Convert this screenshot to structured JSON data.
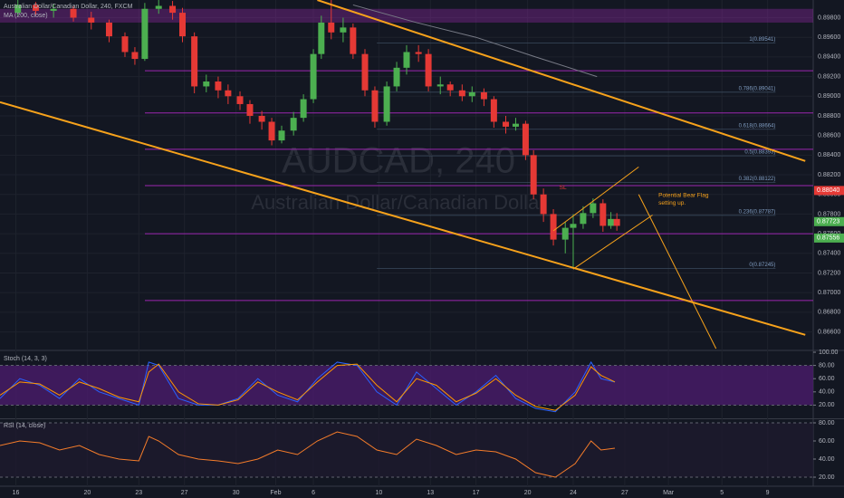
{
  "chart_data": [
    {
      "type": "candlestick",
      "title": "Australian Dollar/Canadian Dollar, 240, FXCM",
      "indicator": "MA (200, close)",
      "watermark": "AUDCAD, 240",
      "watermark_subtitle": "Australian Dollar/Canadian Dollar",
      "up_color": "#4caf50",
      "down_color": "#e53935",
      "xlim": [
        0,
        41
      ],
      "ylim": [
        0.8643,
        0.8998
      ],
      "x": [
        0.9,
        1.8,
        2.7,
        3.7,
        4.6,
        5.5,
        6.3,
        6.8,
        7.3,
        8.0,
        8.7,
        9.2,
        9.8,
        10.4,
        11.0,
        11.5,
        12.1,
        12.6,
        13.2,
        13.7,
        14.2,
        14.8,
        15.3,
        15.8,
        16.2,
        16.7,
        17.3,
        17.8,
        18.4,
        18.9,
        19.5,
        20.0,
        20.5,
        21.1,
        21.6,
        22.2,
        22.7,
        23.3,
        23.8,
        24.4,
        24.9,
        25.5,
        26.0,
        26.5,
        26.9,
        27.4,
        27.9,
        28.5,
        28.9,
        29.4,
        29.9,
        30.4,
        30.8,
        31.1
      ],
      "open": [
        0.8985,
        0.8993,
        0.8987,
        0.8989,
        0.898,
        0.8975,
        0.8961,
        0.8945,
        0.8938,
        0.8989,
        0.8992,
        0.8985,
        0.8961,
        0.891,
        0.8915,
        0.8906,
        0.89,
        0.8892,
        0.888,
        0.8874,
        0.8855,
        0.8865,
        0.8878,
        0.8897,
        0.8943,
        0.8975,
        0.8965,
        0.897,
        0.8943,
        0.8906,
        0.8874,
        0.891,
        0.8929,
        0.8945,
        0.8943,
        0.891,
        0.8912,
        0.8906,
        0.89,
        0.8904,
        0.8897,
        0.8874,
        0.8869,
        0.8872,
        0.884,
        0.88,
        0.878,
        0.8754,
        0.8766,
        0.877,
        0.8781,
        0.8791,
        0.8768,
        0.8775
      ],
      "high": [
        0.8998,
        0.8996,
        0.8994,
        0.8992,
        0.8986,
        0.8978,
        0.8965,
        0.895,
        0.8995,
        0.8998,
        0.8997,
        0.899,
        0.8965,
        0.8922,
        0.892,
        0.8912,
        0.8905,
        0.8896,
        0.8885,
        0.8878,
        0.887,
        0.8884,
        0.8902,
        0.8948,
        0.8982,
        0.8998,
        0.898,
        0.8974,
        0.8948,
        0.891,
        0.8915,
        0.8935,
        0.8952,
        0.8952,
        0.8948,
        0.892,
        0.8915,
        0.8912,
        0.891,
        0.8908,
        0.89,
        0.888,
        0.8878,
        0.8875,
        0.8845,
        0.8806,
        0.8785,
        0.8772,
        0.878,
        0.8788,
        0.8796,
        0.8795,
        0.8782,
        0.8781
      ],
      "low": [
        0.8982,
        0.8983,
        0.898,
        0.8976,
        0.8968,
        0.8955,
        0.894,
        0.8932,
        0.8936,
        0.8984,
        0.8978,
        0.8955,
        0.8903,
        0.8904,
        0.8898,
        0.8892,
        0.8886,
        0.8872,
        0.8866,
        0.885,
        0.8852,
        0.886,
        0.8874,
        0.8893,
        0.8938,
        0.8958,
        0.8955,
        0.8938,
        0.89,
        0.8868,
        0.887,
        0.8905,
        0.8922,
        0.8935,
        0.8905,
        0.8902,
        0.89,
        0.8895,
        0.8894,
        0.889,
        0.8868,
        0.8862,
        0.8865,
        0.8835,
        0.8795,
        0.8772,
        0.8748,
        0.874,
        0.8725,
        0.8765,
        0.8776,
        0.8762,
        0.8765,
        0.8763
      ],
      "close": [
        0.8993,
        0.8987,
        0.8989,
        0.898,
        0.8975,
        0.8961,
        0.8945,
        0.8938,
        0.8989,
        0.8992,
        0.8985,
        0.8961,
        0.891,
        0.8915,
        0.8906,
        0.89,
        0.8892,
        0.888,
        0.8874,
        0.8855,
        0.8865,
        0.8878,
        0.8897,
        0.8943,
        0.8975,
        0.8965,
        0.897,
        0.8943,
        0.8906,
        0.8874,
        0.891,
        0.8929,
        0.8945,
        0.8943,
        0.891,
        0.8912,
        0.8906,
        0.89,
        0.8904,
        0.8897,
        0.8874,
        0.8869,
        0.8872,
        0.884,
        0.88,
        0.878,
        0.8754,
        0.8766,
        0.877,
        0.8781,
        0.8791,
        0.8768,
        0.8775,
        0.8768
      ],
      "yticks": [
        {
          "value": 0.898,
          "label": "0.89800"
        },
        {
          "value": 0.896,
          "label": "0.89600"
        },
        {
          "value": 0.894,
          "label": "0.89400"
        },
        {
          "value": 0.892,
          "label": "0.89200"
        },
        {
          "value": 0.89,
          "label": "0.89000"
        },
        {
          "value": 0.888,
          "label": "0.88800"
        },
        {
          "value": 0.886,
          "label": "0.88600"
        },
        {
          "value": 0.884,
          "label": "0.88400"
        },
        {
          "value": 0.882,
          "label": "0.88200"
        },
        {
          "value": 0.88,
          "label": "0.88000"
        },
        {
          "value": 0.878,
          "label": "0.87800"
        },
        {
          "value": 0.876,
          "label": "0.87600"
        },
        {
          "value": 0.874,
          "label": "0.87400"
        },
        {
          "value": 0.872,
          "label": "0.87200"
        },
        {
          "value": 0.87,
          "label": "0.87000"
        },
        {
          "value": 0.868,
          "label": "0.86800"
        },
        {
          "value": 0.866,
          "label": "0.86600"
        }
      ],
      "xticks": [
        {
          "value": 0.8,
          "label": "16"
        },
        {
          "value": 4.4,
          "label": "20"
        },
        {
          "value": 7.0,
          "label": "23"
        },
        {
          "value": 9.3,
          "label": "27"
        },
        {
          "value": 11.9,
          "label": "30"
        },
        {
          "value": 13.9,
          "label": "Feb"
        },
        {
          "value": 15.8,
          "label": "6"
        },
        {
          "value": 19.1,
          "label": "10"
        },
        {
          "value": 21.7,
          "label": "13"
        },
        {
          "value": 24.0,
          "label": "17"
        },
        {
          "value": 26.6,
          "label": "20"
        },
        {
          "value": 28.9,
          "label": "24"
        },
        {
          "value": 31.5,
          "label": "27"
        },
        {
          "value": 33.7,
          "label": "Mar"
        },
        {
          "value": 36.4,
          "label": "5"
        },
        {
          "value": 38.7,
          "label": "9"
        }
      ],
      "ma": {
        "color": "#787b86",
        "x": [
          17.8,
          21.0,
          24.0,
          27.0,
          30.1
        ],
        "values": [
          0.8993,
          0.8975,
          0.896,
          0.894,
          0.892
        ]
      },
      "trendlines": [
        {
          "color": "#f7a21b",
          "x": [
            16.0,
            40.6
          ],
          "values": [
            0.8998,
            0.8834
          ]
        },
        {
          "color": "#f7a21b",
          "x": [
            0,
            40.6
          ],
          "values": [
            0.8894,
            0.8657
          ]
        },
        {
          "color": "#f7a21b",
          "x": [
            28.9,
            32.9
          ],
          "values": [
            0.8724,
            0.8779
          ]
        },
        {
          "color": "#f7a21b",
          "x": [
            27.9,
            32.2
          ],
          "values": [
            0.8763,
            0.8828
          ]
        },
        {
          "color": "#f7a21b",
          "x": [
            32.2,
            36.1
          ],
          "values": [
            0.88,
            0.8643
          ]
        }
      ],
      "level_color": "#9c27b0",
      "levels": [
        0.8926,
        0.8883,
        0.8846,
        0.8809,
        0.876,
        0.8692
      ],
      "zone": [
        0.8975,
        0.8989
      ],
      "fib_color": "#7f9cc0",
      "fib": [
        {
          "value": 0.89541,
          "label": "1(0.89541)"
        },
        {
          "value": 0.89041,
          "label": "0.786(0.89041)"
        },
        {
          "value": 0.88664,
          "label": "0.618(0.88664)"
        },
        {
          "value": 0.88393,
          "label": "0.5(0.88393)"
        },
        {
          "value": 0.88122,
          "label": "0.382(0.88122)"
        },
        {
          "value": 0.87787,
          "label": "0.236(0.87787)"
        },
        {
          "value": 0.87245,
          "label": "0(0.87245)"
        }
      ],
      "annotations": [
        {
          "text": "SL",
          "x": 28.2,
          "y": 0.8807,
          "color": "#e53935"
        },
        {
          "text": "Potential Bear Flag",
          "x": 33.2,
          "y": 0.8799,
          "color": "#f7a21b"
        },
        {
          "text": "setting up.",
          "x": 33.2,
          "y": 0.8791,
          "color": "#f7a21b"
        }
      ],
      "price_labels": [
        {
          "value": 0.8804,
          "label": "0.88040",
          "color": "#e53935"
        },
        {
          "value": 0.87723,
          "label": "0.87723",
          "color": "#4caf50"
        },
        {
          "value": 0.87556,
          "label": "0.87556",
          "color": "#4caf50"
        }
      ]
    },
    {
      "type": "line",
      "title": "Stoch (14, 3, 3)",
      "xlim": [
        0,
        41
      ],
      "ylim": [
        0,
        100
      ],
      "yticks": [
        {
          "value": 100,
          "label": "100.00"
        },
        {
          "value": 80,
          "label": "80.00"
        },
        {
          "value": 60,
          "label": "60.00"
        },
        {
          "value": 40,
          "label": "40.00"
        },
        {
          "value": 20,
          "label": "20.00"
        }
      ],
      "band": [
        20,
        80
      ],
      "band_color": "#4a1c6b",
      "x": [
        0,
        1,
        2,
        3,
        4,
        5,
        6,
        7,
        7.5,
        8,
        9,
        10,
        11,
        12,
        13,
        14,
        15,
        16,
        17,
        18,
        19,
        20,
        21,
        22,
        23,
        24,
        25,
        26,
        27,
        28,
        29,
        29.8,
        30.3,
        31
      ],
      "series": [
        {
          "color": "#2962ff",
          "values": [
            30,
            60,
            50,
            30,
            60,
            40,
            30,
            20,
            85,
            80,
            30,
            20,
            20,
            30,
            60,
            35,
            25,
            60,
            85,
            80,
            40,
            20,
            70,
            45,
            20,
            40,
            65,
            30,
            15,
            10,
            40,
            85,
            60,
            55
          ]
        },
        {
          "color": "#ff9800",
          "values": [
            35,
            55,
            52,
            35,
            55,
            45,
            32,
            25,
            70,
            82,
            40,
            22,
            20,
            28,
            55,
            40,
            28,
            55,
            80,
            82,
            50,
            25,
            60,
            50,
            25,
            38,
            60,
            35,
            18,
            12,
            35,
            78,
            65,
            55
          ]
        }
      ]
    },
    {
      "type": "line",
      "title": "RSI (14, close)",
      "xlim": [
        0,
        41
      ],
      "ylim": [
        10,
        84
      ],
      "yticks": [
        {
          "value": 80,
          "label": "80.00"
        },
        {
          "value": 60,
          "label": "60.00"
        },
        {
          "value": 40,
          "label": "40.00"
        },
        {
          "value": 20,
          "label": "20.00"
        }
      ],
      "band": [
        20,
        80
      ],
      "band_color": "#1e1a2e",
      "x": [
        0,
        1,
        2,
        3,
        4,
        5,
        6,
        7,
        7.5,
        8,
        9,
        10,
        11,
        12,
        13,
        14,
        15,
        16,
        17,
        18,
        19,
        20,
        21,
        22,
        23,
        24,
        25,
        26,
        27,
        28,
        29,
        29.8,
        30.3,
        31
      ],
      "series": [
        {
          "color": "#f57c2a",
          "values": [
            55,
            60,
            58,
            50,
            55,
            45,
            40,
            38,
            65,
            60,
            45,
            40,
            38,
            35,
            40,
            50,
            45,
            60,
            70,
            65,
            50,
            45,
            62,
            55,
            45,
            50,
            48,
            40,
            25,
            20,
            35,
            60,
            50,
            52
          ]
        }
      ]
    }
  ]
}
